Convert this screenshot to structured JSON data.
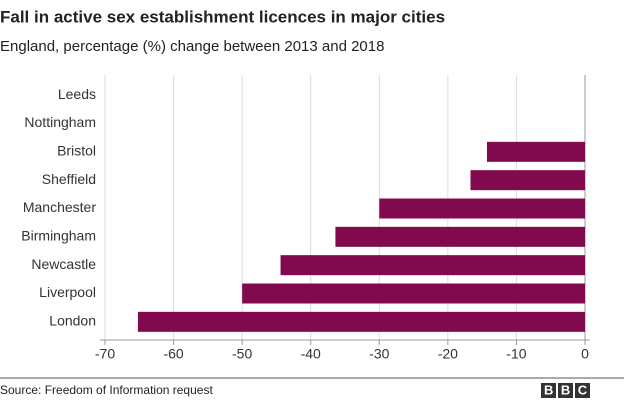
{
  "chart_data": {
    "type": "bar",
    "orientation": "horizontal",
    "title": "Fall in active sex establishment licences in major cities",
    "subtitle": "England, percentage (%) change between 2013 and 2018",
    "categories": [
      "Leeds",
      "Nottingham",
      "Bristol",
      "Sheffield",
      "Manchester",
      "Birmingham",
      "Newcastle",
      "Liverpool",
      "London"
    ],
    "values": [
      0,
      0,
      -14.3,
      -16.7,
      -30,
      -36.4,
      -44.4,
      -50,
      -65.2
    ],
    "color": "#800a4d",
    "xlim": [
      -70,
      0
    ],
    "xticks": [
      -70,
      -60,
      -50,
      -40,
      -30,
      -20,
      -10,
      0
    ],
    "grid": true,
    "source": "Source: Freedom of Information request",
    "logo": "BBC"
  }
}
